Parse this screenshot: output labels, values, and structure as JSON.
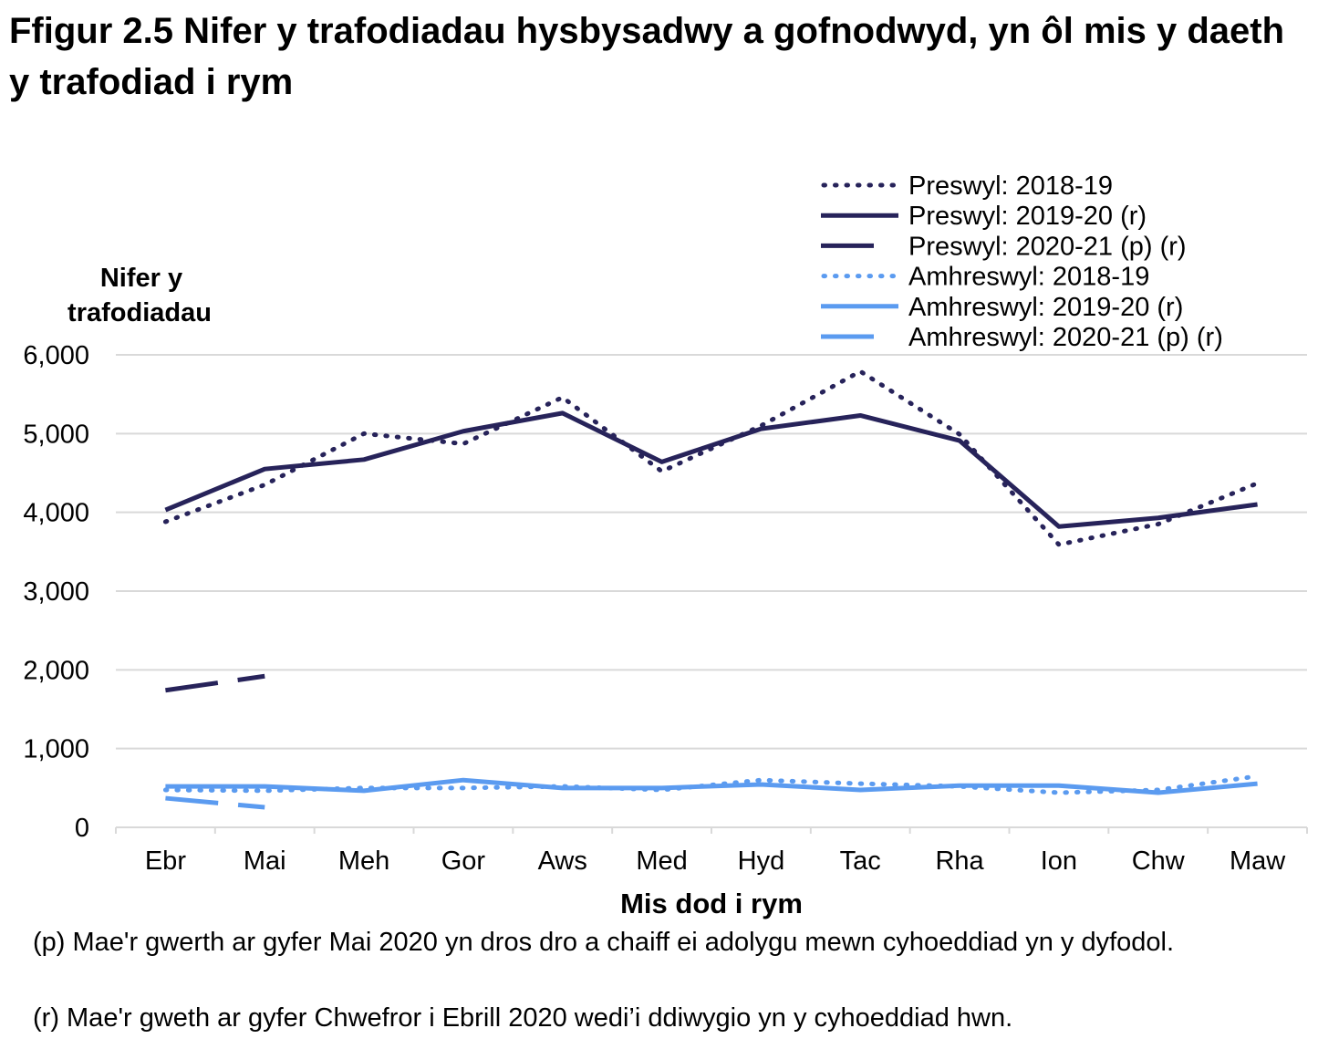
{
  "title": "Ffigur 2.5  Nifer y trafodiadau hysbysadwy a gofnodwyd, yn ôl mis y daeth y trafodiad i rym",
  "footnotes": [
    "(p) Mae'r gwerth ar gyfer Mai 2020 yn dros dro a chaiff ei adolygu mewn cyhoeddiad yn y dyfodol.",
    "(r) Mae'r gweth ar gyfer Chwefror i Ebrill 2020 wedi’i ddiwygio yn y cyhoeddiad hwn."
  ],
  "chart_data": {
    "type": "line",
    "title": "",
    "xlabel": "Mis dod i rym",
    "ylabel": "Nifer y trafodiadau",
    "ylim": [
      0,
      6000
    ],
    "yticks": [
      0,
      1000,
      2000,
      3000,
      4000,
      5000,
      6000
    ],
    "ytick_labels": [
      "0",
      "1,000",
      "2,000",
      "3,000",
      "4,000",
      "5,000",
      "6,000"
    ],
    "grid": "horizontal",
    "legend_placement": "top-right",
    "categories": [
      "Ebr",
      "Mai",
      "Meh",
      "Gor",
      "Aws",
      "Med",
      "Hyd",
      "Tac",
      "Rha",
      "Ion",
      "Chw",
      "Maw"
    ],
    "series": [
      {
        "name": "Preswyl: 2018-19",
        "color": "#27235a",
        "style": "dotted",
        "values": [
          3880,
          4350,
          5000,
          4870,
          5460,
          4520,
          5100,
          5790,
          4990,
          3590,
          3850,
          4370
        ]
      },
      {
        "name": "Preswyl: 2019-20 (r)",
        "color": "#27235a",
        "style": "solid",
        "values": [
          4030,
          4550,
          4670,
          5030,
          5260,
          4640,
          5060,
          5230,
          4910,
          3820,
          3930,
          4100
        ]
      },
      {
        "name": "Preswyl: 2020-21 (p) (r)",
        "color": "#27235a",
        "style": "dashed",
        "values": [
          1740,
          1920,
          null,
          null,
          null,
          null,
          null,
          null,
          null,
          null,
          null,
          null
        ]
      },
      {
        "name": "Amhreswyl: 2018-19",
        "color": "#5b9bf0",
        "style": "dotted",
        "values": [
          475,
          465,
          500,
          500,
          520,
          475,
          600,
          555,
          520,
          440,
          475,
          650
        ]
      },
      {
        "name": "Amhreswyl: 2019-20 (r)",
        "color": "#5b9bf0",
        "style": "solid",
        "values": [
          520,
          520,
          465,
          600,
          500,
          500,
          545,
          475,
          530,
          530,
          440,
          555
        ]
      },
      {
        "name": "Amhreswyl: 2020-21 (p) (r)",
        "color": "#5b9bf0",
        "style": "dashed",
        "values": [
          370,
          255,
          null,
          null,
          null,
          null,
          null,
          null,
          null,
          null,
          null,
          null
        ]
      }
    ]
  }
}
